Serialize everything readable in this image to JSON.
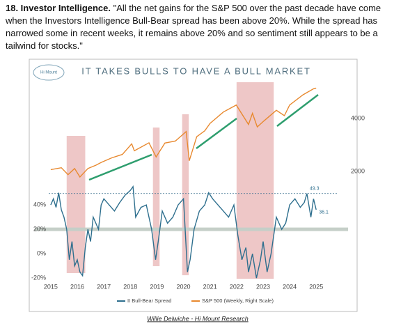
{
  "text": {
    "heading": "18. Investor Intelligence.",
    "body": "\"All the net gains for the S&P 500 over the past decade have come when the Investors Intelligence Bull-Bear spread has been above 20%. While the spread has narrowed some in recent weeks, it remains above 20% and so sentiment still appears to be a tailwind for stocks.\"",
    "caption": "Willie Delwiche - Hi Mount Research"
  },
  "chart_data": {
    "type": "line",
    "title": "IT TAKES BULLS TO HAVE A BULL MARKET",
    "logo": "Hi Mount",
    "xlim": [
      2014.4,
      2026.2
    ],
    "xticks": [
      2015,
      2016,
      2017,
      2018,
      2019,
      2020,
      2021,
      2022,
      2023,
      2024,
      2025
    ],
    "ylim": [
      -23.4,
      150.9
    ],
    "yticks": [
      {
        "value": -20,
        "label": "-20%"
      },
      {
        "value": 0,
        "label": "0%"
      },
      {
        "value": 20,
        "label": "20%"
      },
      {
        "value": 40,
        "label": "40%"
      }
    ],
    "y2lim": [
      470,
      7570
    ],
    "y2ticks": [
      2000,
      4000
    ],
    "y2log": true,
    "shaded_periods": [
      [
        2015.6,
        2016.3
      ],
      [
        2018.85,
        2019.1
      ],
      [
        2019.95,
        2020.2
      ],
      [
        2022.0,
        2023.4
      ]
    ],
    "annotations": [
      {
        "x": 2024.65,
        "value": 49.3
      },
      {
        "x": 2025.0,
        "value": 36.1
      }
    ],
    "series": [
      {
        "name": "II Bull-Bear Spread",
        "color": "#2e6f8e",
        "x": [
          2015.0,
          2015.1,
          2015.2,
          2015.3,
          2015.4,
          2015.5,
          2015.6,
          2015.7,
          2015.8,
          2015.9,
          2016.0,
          2016.1,
          2016.2,
          2016.3,
          2016.4,
          2016.5,
          2016.6,
          2016.7,
          2016.8,
          2016.9,
          2017.0,
          2017.2,
          2017.4,
          2017.6,
          2017.8,
          2018.0,
          2018.1,
          2018.2,
          2018.4,
          2018.6,
          2018.8,
          2018.95,
          2019.05,
          2019.2,
          2019.4,
          2019.6,
          2019.8,
          2020.0,
          2020.15,
          2020.25,
          2020.4,
          2020.6,
          2020.8,
          2020.95,
          2021.1,
          2021.3,
          2021.5,
          2021.7,
          2021.9,
          2022.05,
          2022.2,
          2022.35,
          2022.45,
          2022.6,
          2022.75,
          2022.9,
          2023.0,
          2023.15,
          2023.3,
          2023.5,
          2023.7,
          2023.85,
          2024.0,
          2024.2,
          2024.4,
          2024.55,
          2024.65,
          2024.8,
          2024.9,
          2025.0
        ],
        "values": [
          40,
          45,
          38,
          50,
          36,
          30,
          20,
          -5,
          10,
          -10,
          -5,
          -15,
          -18,
          5,
          20,
          10,
          30,
          25,
          20,
          40,
          45,
          40,
          35,
          42,
          48,
          52,
          55,
          30,
          38,
          40,
          20,
          -5,
          10,
          35,
          25,
          30,
          40,
          45,
          -15,
          -5,
          20,
          35,
          40,
          50,
          45,
          40,
          35,
          30,
          40,
          15,
          -5,
          5,
          -15,
          0,
          -20,
          -5,
          10,
          -15,
          0,
          30,
          20,
          25,
          40,
          45,
          38,
          42,
          49.3,
          30,
          45,
          36.1
        ]
      },
      {
        "name": "S&P 500 (Weekly, Right Scale)",
        "color": "#e8892f",
        "axis": "y2",
        "x": [
          2015.0,
          2015.4,
          2015.65,
          2015.9,
          2016.1,
          2016.4,
          2016.7,
          2016.9,
          2017.3,
          2017.7,
          2018.05,
          2018.15,
          2018.7,
          2018.97,
          2019.3,
          2019.7,
          2020.1,
          2020.22,
          2020.5,
          2020.8,
          2021.0,
          2021.5,
          2021.99,
          2022.45,
          2022.6,
          2022.78,
          2023.0,
          2023.5,
          2023.8,
          2024.0,
          2024.5,
          2024.9,
          2025.0
        ],
        "values": [
          2050,
          2100,
          1920,
          2080,
          1860,
          2080,
          2170,
          2250,
          2390,
          2500,
          2870,
          2620,
          2910,
          2420,
          2900,
          2980,
          3370,
          2300,
          3150,
          3400,
          3750,
          4350,
          4770,
          3700,
          4280,
          3580,
          3840,
          4450,
          4150,
          4770,
          5450,
          5900,
          5950
        ]
      }
    ]
  }
}
